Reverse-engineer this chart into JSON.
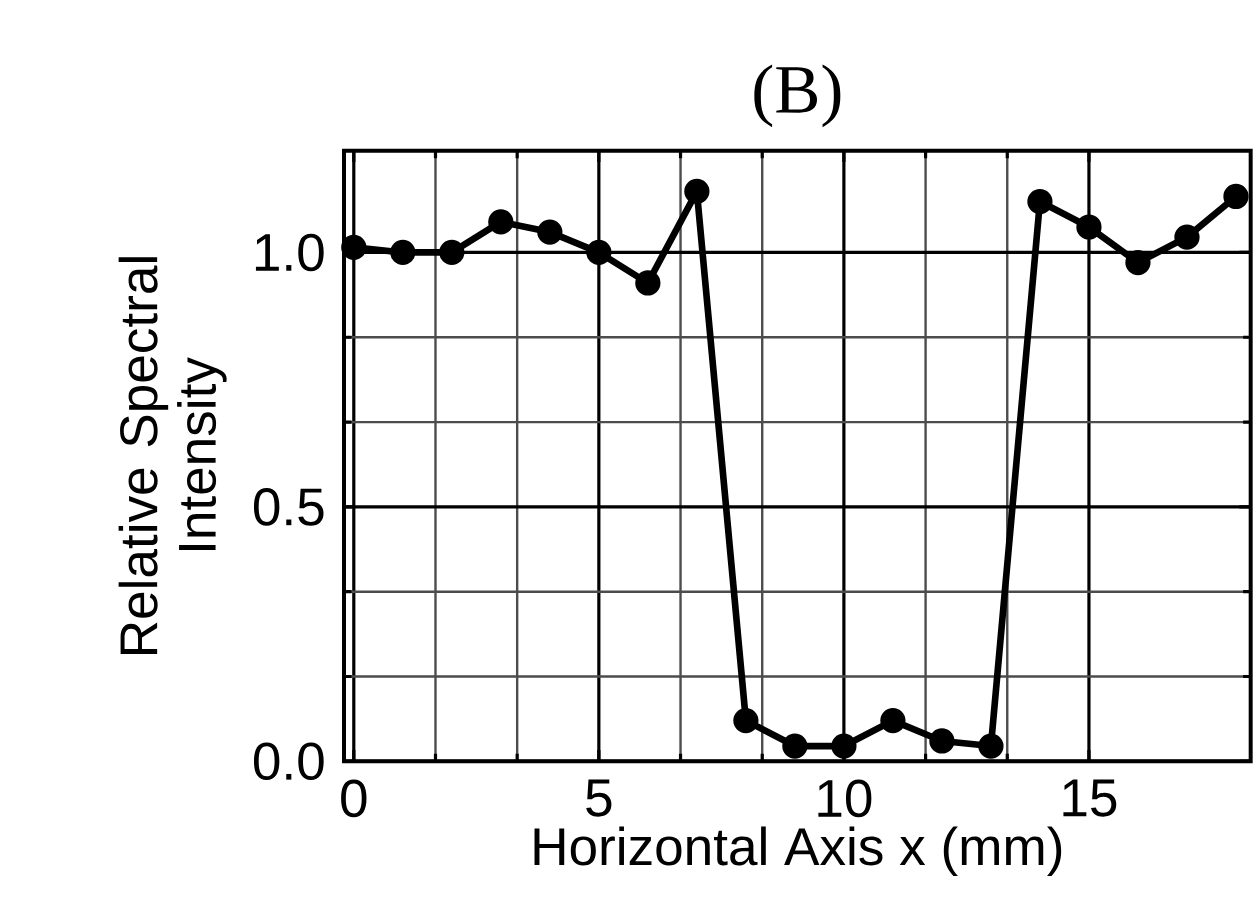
{
  "chart_data": {
    "type": "line",
    "title": "(B)",
    "xlabel": "Horizontal Axis x (mm)",
    "ylabel": "Relative Spectral Intensity",
    "x": [
      0,
      1,
      2,
      3,
      4,
      5,
      6,
      7,
      8,
      9,
      10,
      11,
      12,
      13,
      14,
      15,
      16,
      17,
      18
    ],
    "series": [
      {
        "color": "#000000",
        "values": [
          1.01,
          1.0,
          1.0,
          1.06,
          1.04,
          1.0,
          0.94,
          1.12,
          0.08,
          0.03,
          0.03,
          0.08,
          0.04,
          0.03,
          1.1,
          1.05,
          0.98,
          1.03,
          1.11
        ]
      }
    ],
    "xlim": [
      -0.2,
      18.3
    ],
    "ylim": [
      0,
      1.2
    ],
    "xticks": [
      0,
      5,
      10,
      15
    ],
    "yticks": [
      {
        "value": 0,
        "label": "0.0"
      },
      {
        "value": 0.5,
        "label": "0.5"
      },
      {
        "value": 1,
        "label": "1.0"
      }
    ],
    "grid": true,
    "marker": "circle",
    "line_style": "solid"
  }
}
